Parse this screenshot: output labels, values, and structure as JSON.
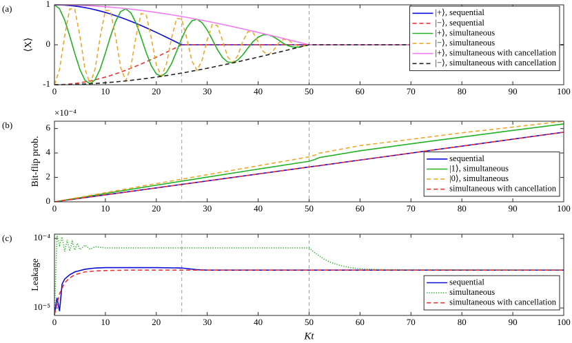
{
  "chart_data": [
    {
      "type": "line",
      "panel_label": "(a)",
      "ylabel": "⟨X⟩",
      "legend": "upper right",
      "xlim": [
        0,
        100
      ],
      "xticks": [
        0,
        10,
        20,
        30,
        40,
        50,
        60,
        70,
        80,
        90,
        100
      ],
      "ylim": [
        -1,
        1
      ],
      "yticks": [
        -1,
        0,
        1
      ],
      "vlines": [
        25,
        50
      ],
      "x": [
        0,
        1,
        2,
        3,
        4,
        5,
        6,
        7,
        8,
        9,
        10,
        11,
        12,
        13,
        14,
        15,
        16,
        17,
        18,
        19,
        20,
        21,
        22,
        23,
        24,
        25,
        26,
        27,
        28,
        29,
        30,
        31,
        32,
        33,
        34,
        35,
        36,
        37,
        38,
        39,
        40,
        41,
        42,
        43,
        44,
        45,
        46,
        47,
        48,
        49,
        50,
        100
      ],
      "series": [
        {
          "name": "|+⟩, sequential",
          "color": "#0a0ad8",
          "style": "solid",
          "values": [
            1,
            0.998,
            0.992,
            0.982,
            0.969,
            0.951,
            0.93,
            0.905,
            0.876,
            0.844,
            0.809,
            0.771,
            0.729,
            0.685,
            0.637,
            0.588,
            0.536,
            0.482,
            0.426,
            0.368,
            0.309,
            0.249,
            0.187,
            0.125,
            0.063,
            0,
            0,
            0,
            0,
            0,
            0,
            0,
            0,
            0,
            0,
            0,
            0,
            0,
            0,
            0,
            0,
            0,
            0,
            0,
            0,
            0,
            0,
            0,
            0,
            0,
            0,
            0
          ]
        },
        {
          "name": "|−⟩, sequential",
          "color": "#f03030",
          "style": "dashed",
          "values": [
            -1,
            -0.998,
            -0.992,
            -0.982,
            -0.969,
            -0.951,
            -0.93,
            -0.905,
            -0.876,
            -0.844,
            -0.809,
            -0.771,
            -0.729,
            -0.685,
            -0.637,
            -0.588,
            -0.536,
            -0.482,
            -0.426,
            -0.368,
            -0.309,
            -0.249,
            -0.187,
            -0.125,
            -0.063,
            0,
            0,
            0,
            0,
            0,
            0,
            0,
            0,
            0,
            0,
            0,
            0,
            0,
            0,
            0,
            0,
            0,
            0,
            0,
            0,
            0,
            0,
            0,
            0,
            0,
            0,
            0
          ]
        },
        {
          "name": "|+⟩, simultaneous",
          "color": "#22b022",
          "style": "solid",
          "values": [
            1,
            0.9,
            0.62,
            0.22,
            -0.22,
            -0.62,
            -0.89,
            -0.98,
            -0.87,
            -0.6,
            -0.21,
            0.21,
            0.58,
            0.83,
            0.9,
            0.8,
            0.55,
            0.19,
            -0.19,
            -0.52,
            -0.73,
            -0.79,
            -0.69,
            -0.47,
            -0.16,
            0.16,
            0.43,
            0.6,
            0.64,
            0.55,
            0.37,
            0.13,
            -0.12,
            -0.32,
            -0.43,
            -0.45,
            -0.38,
            -0.25,
            -0.08,
            0.08,
            0.19,
            0.25,
            0.25,
            0.2,
            0.12,
            0.03,
            -0.03,
            -0.06,
            -0.06,
            -0.03,
            0,
            0
          ]
        },
        {
          "name": "|−⟩, simultaneous",
          "color": "#eea62a",
          "style": "dashed",
          "values": [
            -1,
            -0.62,
            0.22,
            0.9,
            0.89,
            0.22,
            -0.61,
            -0.98,
            -0.6,
            0.21,
            0.86,
            0.85,
            0.21,
            -0.57,
            -0.9,
            -0.56,
            0.2,
            0.78,
            0.76,
            0.18,
            -0.5,
            -0.79,
            -0.48,
            0.17,
            0.66,
            0.64,
            0.15,
            -0.41,
            -0.64,
            -0.38,
            0.13,
            0.51,
            0.48,
            0.11,
            -0.3,
            -0.45,
            -0.27,
            0.09,
            0.33,
            0.31,
            0.07,
            -0.17,
            -0.25,
            -0.14,
            0.04,
            0.14,
            0.11,
            0.02,
            -0.04,
            -0.03,
            0,
            0
          ]
        },
        {
          "name": "|+⟩, simultaneous with cancellation",
          "color": "#f07ef0",
          "style": "solid",
          "values": [
            1,
            0.999,
            0.998,
            0.996,
            0.992,
            0.988,
            0.982,
            0.976,
            0.969,
            0.96,
            0.951,
            0.941,
            0.93,
            0.918,
            0.905,
            0.891,
            0.876,
            0.861,
            0.844,
            0.827,
            0.809,
            0.79,
            0.771,
            0.75,
            0.729,
            0.707,
            0.685,
            0.661,
            0.637,
            0.613,
            0.588,
            0.562,
            0.536,
            0.509,
            0.482,
            0.454,
            0.426,
            0.397,
            0.368,
            0.339,
            0.309,
            0.279,
            0.249,
            0.218,
            0.187,
            0.156,
            0.125,
            0.094,
            0.063,
            0.031,
            0,
            0
          ]
        },
        {
          "name": "|−⟩, simultaneous with cancellation",
          "color": "#222222",
          "style": "dashed",
          "values": [
            -1,
            -0.999,
            -0.998,
            -0.996,
            -0.992,
            -0.988,
            -0.982,
            -0.976,
            -0.969,
            -0.96,
            -0.951,
            -0.941,
            -0.93,
            -0.918,
            -0.905,
            -0.891,
            -0.876,
            -0.861,
            -0.844,
            -0.827,
            -0.809,
            -0.79,
            -0.771,
            -0.75,
            -0.729,
            -0.707,
            -0.685,
            -0.661,
            -0.637,
            -0.613,
            -0.588,
            -0.562,
            -0.536,
            -0.509,
            -0.482,
            -0.454,
            -0.426,
            -0.397,
            -0.368,
            -0.339,
            -0.309,
            -0.279,
            -0.249,
            -0.218,
            -0.187,
            -0.156,
            -0.125,
            -0.094,
            -0.063,
            -0.031,
            0,
            0
          ]
        }
      ]
    },
    {
      "type": "line",
      "panel_label": "(b)",
      "ylabel": "Bit-flip prob.",
      "legend": "lower right",
      "y_exponent_label": "×10⁻⁴",
      "xlim": [
        0,
        100
      ],
      "xticks": [
        0,
        10,
        20,
        30,
        40,
        50,
        60,
        70,
        80,
        90,
        100
      ],
      "ylim": [
        0,
        0.00066
      ],
      "yticks": [
        {
          "value": 0,
          "label": "0"
        },
        {
          "value": 0.0002,
          "label": "2"
        },
        {
          "value": 0.0004,
          "label": "4"
        },
        {
          "value": 0.0006,
          "label": "6"
        }
      ],
      "vlines": [
        25,
        50
      ],
      "x": [
        0,
        10,
        20,
        30,
        40,
        50,
        51,
        52,
        60,
        70,
        80,
        90,
        100
      ],
      "series": [
        {
          "name": "sequential",
          "color": "#0a0ad8",
          "style": "solid",
          "values": [
            0,
            5.7e-05,
            0.000114,
            0.000171,
            0.000228,
            0.000285,
            0.000291,
            0.000296,
            0.000342,
            0.000399,
            0.000456,
            0.000513,
            0.00057
          ]
        },
        {
          "name": "|1⟩, simultaneous",
          "color": "#22b022",
          "style": "solid",
          "values": [
            0,
            6.8e-05,
            0.000136,
            0.000202,
            0.000268,
            0.000332,
            0.000345,
            0.000362,
            0.000418,
            0.000475,
            0.00053,
            0.000585,
            0.000638
          ]
        },
        {
          "name": "|0⟩, simultaneous",
          "color": "#eea62a",
          "style": "dashed",
          "values": [
            0,
            7.5e-05,
            0.000149,
            0.000222,
            0.000295,
            0.000368,
            0.00038,
            0.000398,
            0.00046,
            0.000512,
            0.000565,
            0.000612,
            0.00066
          ]
        },
        {
          "name": "simultaneous with cancellation",
          "color": "#f03030",
          "style": "dashed",
          "values": [
            0,
            5.7e-05,
            0.000114,
            0.000171,
            0.000228,
            0.000285,
            0.000291,
            0.000296,
            0.000342,
            0.000399,
            0.000456,
            0.000513,
            0.00057
          ]
        }
      ]
    },
    {
      "type": "line",
      "panel_label": "(c)",
      "ylabel": "Leakage",
      "xlabel": "Kt",
      "legend": "lower right",
      "log_y": true,
      "xlim": [
        0,
        100
      ],
      "xticks": [
        0,
        10,
        20,
        30,
        40,
        50,
        60,
        70,
        80,
        90,
        100
      ],
      "ylim": [
        7.8e-06,
        0.000115
      ],
      "yticks": [
        {
          "value": 1e-05,
          "label": "10⁻⁵"
        },
        {
          "value": 0.0001,
          "label": "10⁻⁴"
        }
      ],
      "vlines": [
        25,
        50
      ],
      "series": [
        {
          "name": "sequential",
          "color": "#0a0ad8",
          "style": "solid",
          "x": [
            0,
            0.5,
            1,
            1.5,
            2,
            3,
            4,
            6,
            8,
            10,
            15,
            20,
            25,
            28,
            30,
            100
          ],
          "values": [
            8e-06,
            1.4e-05,
            9e-06,
            2.2e-05,
            2.6e-05,
            3e-05,
            3.3e-05,
            3.6e-05,
            3.75e-05,
            3.8e-05,
            3.8e-05,
            3.8e-05,
            3.75e-05,
            3.55e-05,
            3.5e-05,
            3.5e-05
          ]
        },
        {
          "name": "simultaneous",
          "color": "#22b022",
          "style": "dotted",
          "x": [
            0,
            0.5,
            1,
            1.5,
            2,
            2.5,
            3,
            3.5,
            4,
            4.5,
            5,
            6,
            7,
            8,
            10,
            20,
            30,
            40,
            50,
            50.5,
            51,
            52,
            53,
            54,
            56,
            58,
            60,
            65,
            100
          ],
          "values": [
            8e-06,
            0.00011,
            8e-05,
            0.000105,
            6.5e-05,
            9.5e-05,
            6.6e-05,
            9e-05,
            6.8e-05,
            8.5e-05,
            6.9e-05,
            8e-05,
            7e-05,
            7.6e-05,
            7.3e-05,
            7.3e-05,
            7.3e-05,
            7.3e-05,
            7.3e-05,
            6.8e-05,
            6.3e-05,
            5.6e-05,
            5e-05,
            4.6e-05,
            4.1e-05,
            3.8e-05,
            3.65e-05,
            3.55e-05,
            3.5e-05
          ]
        },
        {
          "name": "simultaneous with cancellation",
          "color": "#f03030",
          "style": "dashed",
          "x": [
            0,
            1,
            2,
            3,
            4,
            6,
            8,
            10,
            15,
            20,
            25,
            30,
            100
          ],
          "values": [
            8e-06,
            1.6e-05,
            2.3e-05,
            2.7e-05,
            3e-05,
            3.3e-05,
            3.4e-05,
            3.45e-05,
            3.5e-05,
            3.5e-05,
            3.5e-05,
            3.5e-05,
            3.5e-05
          ]
        }
      ]
    }
  ]
}
